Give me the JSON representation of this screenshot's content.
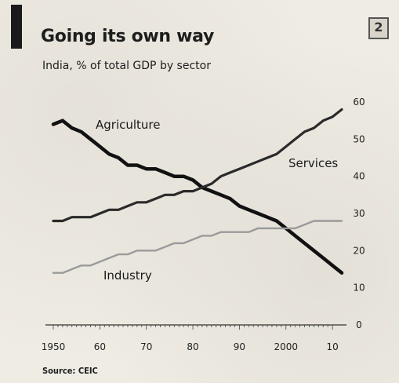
{
  "header": {
    "title": "Going its own way",
    "subtitle": "India, % of total GDP by sector",
    "chart_number": "2"
  },
  "footer": {
    "source": "Source: CEIC"
  },
  "colors": {
    "agriculture": "#111111",
    "services": "#2a2a2a",
    "industry": "#9a9a9a",
    "background": "#efece4"
  },
  "chart_data": {
    "type": "line",
    "title": "Going its own way",
    "subtitle": "India, % of total GDP by sector",
    "xlabel": "",
    "ylabel": "",
    "xlim": [
      1950,
      2012
    ],
    "ylim": [
      0,
      60
    ],
    "x_ticks": [
      1950,
      1960,
      1970,
      1980,
      1990,
      2000,
      2010
    ],
    "x_tick_labels": [
      "1950",
      "60",
      "70",
      "80",
      "90",
      "2000",
      "10"
    ],
    "y_ticks": [
      0,
      10,
      20,
      30,
      40,
      50,
      60
    ],
    "y_tick_labels": [
      "0",
      "10",
      "20",
      "30",
      "40",
      "50",
      "60"
    ],
    "y_axis_side": "right",
    "grid": false,
    "legend": "inline labels",
    "x": [
      1950,
      1952,
      1954,
      1956,
      1958,
      1960,
      1962,
      1964,
      1966,
      1968,
      1970,
      1972,
      1974,
      1976,
      1978,
      1980,
      1982,
      1984,
      1986,
      1988,
      1990,
      1992,
      1994,
      1996,
      1998,
      2000,
      2002,
      2004,
      2006,
      2008,
      2010,
      2012
    ],
    "series": [
      {
        "name": "Agriculture",
        "values": [
          54,
          55,
          53,
          52,
          50,
          48,
          46,
          45,
          43,
          43,
          42,
          42,
          41,
          40,
          40,
          39,
          37,
          36,
          35,
          34,
          32,
          31,
          30,
          29,
          28,
          26,
          24,
          22,
          20,
          18,
          16,
          14
        ]
      },
      {
        "name": "Services",
        "values": [
          28,
          28,
          29,
          29,
          29,
          30,
          31,
          31,
          32,
          33,
          33,
          34,
          35,
          35,
          36,
          36,
          37,
          38,
          40,
          41,
          42,
          43,
          44,
          45,
          46,
          48,
          50,
          52,
          53,
          55,
          56,
          58
        ]
      },
      {
        "name": "Industry",
        "values": [
          14,
          14,
          15,
          16,
          16,
          17,
          18,
          19,
          19,
          20,
          20,
          20,
          21,
          22,
          22,
          23,
          24,
          24,
          25,
          25,
          25,
          25,
          26,
          26,
          26,
          26,
          26,
          27,
          28,
          28,
          28,
          28
        ]
      }
    ]
  }
}
